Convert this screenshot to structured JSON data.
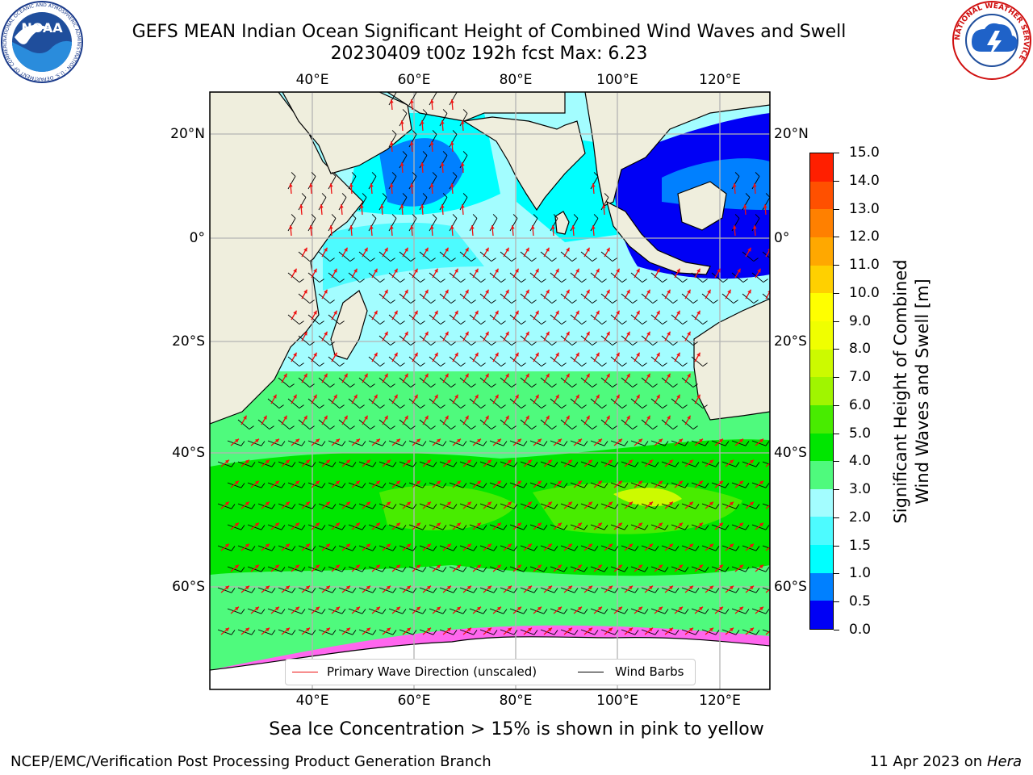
{
  "title": {
    "line1": "GEFS MEAN Indian Ocean Significant Height of Combined Wind Waves and Swell",
    "line2": "20230409 t00z 192h fcst   Max: 6.23"
  },
  "map": {
    "lon_labels": [
      "40°E",
      "60°E",
      "80°E",
      "100°E",
      "120°E"
    ],
    "lat_labels": [
      "20°N",
      "0°",
      "20°S",
      "40°S",
      "60°S"
    ],
    "extent": {
      "lon": [
        20,
        129
      ],
      "lat": [
        -75,
        27
      ]
    },
    "colors": {
      "land": "#efeedd",
      "grid": "#b4b4b4",
      "wave_arrow": "#ee1010",
      "wind_barb": "#000000"
    }
  },
  "colorbar": {
    "label_line1": "Significant Height of Combined",
    "label_line2": "Wind Waves and Swell [m]",
    "ticks": [
      "0.0",
      "0.5",
      "1.0",
      "1.5",
      "2.0",
      "3.0",
      "4.0",
      "5.0",
      "6.0",
      "7.0",
      "8.0",
      "9.0",
      "10.0",
      "11.0",
      "12.0",
      "13.0",
      "14.0",
      "15.0"
    ],
    "colors": [
      "#0000f5",
      "#0080ff",
      "#00ffff",
      "#4dfbff",
      "#a3fdff",
      "#4ffa7d",
      "#00e600",
      "#48ec00",
      "#a0f500",
      "#ccfa00",
      "#f0ff00",
      "#ffff00",
      "#ffd000",
      "#ffa800",
      "#ff8000",
      "#ff5000",
      "#ff1f00"
    ]
  },
  "legend": {
    "wave_direction": "Primary Wave Direction (unscaled)",
    "wind_barbs": "Wind Barbs"
  },
  "ice_note": "Sea Ice Concentration > 15% is shown in pink to yellow",
  "footer": {
    "left": "NCEP/EMC/Verification Post Processing Product Generation Branch",
    "right_date": "11 Apr 2023 on",
    "right_host": "Hera"
  },
  "logos": {
    "noaa_text": "NOAA",
    "noaa_ring": "NATIONAL OCEANIC AND ATMOSPHERIC ADMINISTRATION · U.S. DEPARTMENT OF COMMERCE",
    "nws_ring": "NATIONAL WEATHER SERVICE"
  }
}
